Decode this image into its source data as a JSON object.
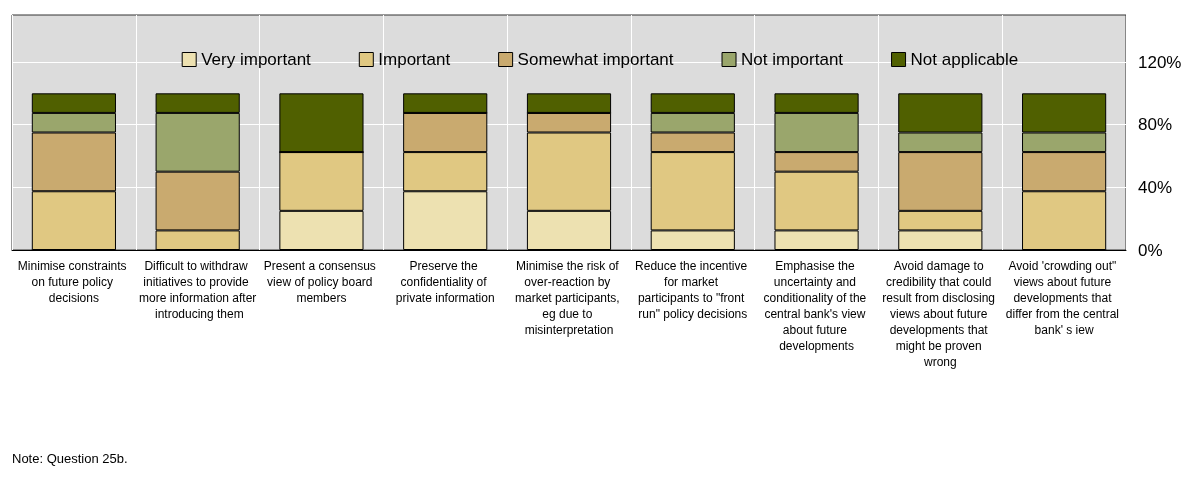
{
  "chart_data": {
    "type": "bar",
    "stacked": true,
    "categories": [
      "Minimise constraints on future policy decisions",
      "Difficult to withdraw initiatives to provide more information after introducing them",
      "Present a consensus view of policy board members",
      "Preserve the confidentiality of private information",
      "Minimise the risk of over-reaction by market participants, eg due to misinterpretation",
      "Reduce the incentive for market participants to \"front run\" policy decisions",
      "Emphasise the uncertainty and conditionality of the central bank's view about future developments",
      "Avoid damage to credibility that could result from disclosing views about future developments that might be proven wrong",
      "Avoid 'crowding out\" views about future developments that differ from the central bank' s iew"
    ],
    "series": [
      {
        "name": "Very important",
        "color": "#ede1b1",
        "values": [
          0,
          0,
          25,
          37.5,
          25,
          12.5,
          12.5,
          12.5,
          0
        ]
      },
      {
        "name": "Important",
        "color": "#e0c882",
        "values": [
          37.5,
          12.5,
          37.5,
          25,
          50,
          50,
          37.5,
          12.5,
          37.5
        ]
      },
      {
        "name": "Somewhat important",
        "color": "#c9aa6f",
        "values": [
          37.5,
          37.5,
          0,
          25,
          12.5,
          12.5,
          12.5,
          37.5,
          25
        ]
      },
      {
        "name": "Not important",
        "color": "#9aa66c",
        "values": [
          12.5,
          37.5,
          0,
          0,
          0,
          12.5,
          25,
          12.5,
          12.5
        ]
      },
      {
        "name": "Not applicable",
        "color": "#506000",
        "values": [
          12.5,
          12.5,
          37.5,
          12.5,
          12.5,
          12.5,
          12.5,
          25,
          25
        ]
      }
    ],
    "ylim": [
      0,
      150
    ],
    "yticks": [
      {
        "value": 0,
        "label": "0%"
      },
      {
        "value": 40,
        "label": "40%"
      },
      {
        "value": 80,
        "label": "80%"
      },
      {
        "value": 120,
        "label": "120%"
      }
    ],
    "grid": true,
    "legend": "top",
    "annotations": [
      "Note: Question 25b."
    ]
  }
}
